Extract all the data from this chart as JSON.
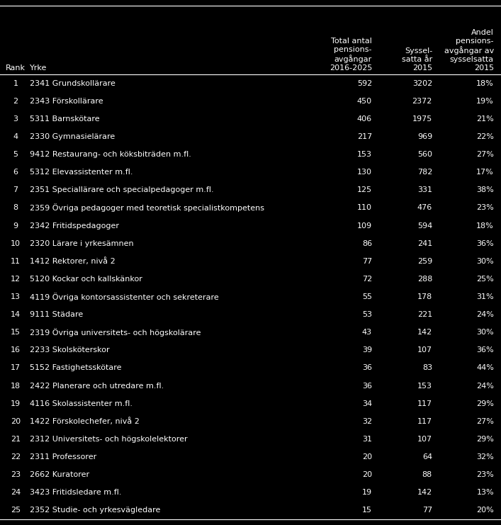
{
  "background_color": "#000000",
  "text_color": "#ffffff",
  "col_headers": [
    "Total antal\npensions-\navgångar\n2016-2025",
    "Syssel-\nsatta år\n2015",
    "Andel\npensions-\navgångar av\nsysselsatta\n2015"
  ],
  "rows": [
    [
      1,
      "2341 Grundskollärare",
      592,
      3202,
      "18%"
    ],
    [
      2,
      "2343 Förskollärare",
      450,
      2372,
      "19%"
    ],
    [
      3,
      "5311 Barnskötare",
      406,
      1975,
      "21%"
    ],
    [
      4,
      "2330 Gymnasielärare",
      217,
      969,
      "22%"
    ],
    [
      5,
      "9412 Restaurang- och köksbiträden m.fl.",
      153,
      560,
      "27%"
    ],
    [
      6,
      "5312 Elevassistenter m.fl.",
      130,
      782,
      "17%"
    ],
    [
      7,
      "2351 Speciallärare och specialpedagoger m.fl.",
      125,
      331,
      "38%"
    ],
    [
      8,
      "2359 Övriga pedagoger med teoretisk specialistkompetens",
      110,
      476,
      "23%"
    ],
    [
      9,
      "2342 Fritidspedagoger",
      109,
      594,
      "18%"
    ],
    [
      10,
      "2320 Lärare i yrkesämnen",
      86,
      241,
      "36%"
    ],
    [
      11,
      "1412 Rektorer, nivå 2",
      77,
      259,
      "30%"
    ],
    [
      12,
      "5120 Kockar och kallskänkor",
      72,
      288,
      "25%"
    ],
    [
      13,
      "4119 Övriga kontorsassistenter och sekreterare",
      55,
      178,
      "31%"
    ],
    [
      14,
      "9111 Städare",
      53,
      221,
      "24%"
    ],
    [
      15,
      "2319 Övriga universitets- och högskolärare",
      43,
      142,
      "30%"
    ],
    [
      16,
      "2233 Skolsköterskor",
      39,
      107,
      "36%"
    ],
    [
      17,
      "5152 Fastighetsskötare",
      36,
      83,
      "44%"
    ],
    [
      18,
      "2422 Planerare och utredare m.fl.",
      36,
      153,
      "24%"
    ],
    [
      19,
      "4116 Skolassistenter m.fl.",
      34,
      117,
      "29%"
    ],
    [
      20,
      "1422 Förskolechefer, nivå 2",
      32,
      117,
      "27%"
    ],
    [
      21,
      "2312 Universitets- och högskolelektorer",
      31,
      107,
      "29%"
    ],
    [
      22,
      "2311 Professorer",
      20,
      64,
      "32%"
    ],
    [
      23,
      "2662 Kuratorer",
      20,
      88,
      "23%"
    ],
    [
      24,
      "3423 Fritidsledare m.fl.",
      19,
      142,
      "13%"
    ],
    [
      25,
      "2352 Studie- och yrkesvägledare",
      15,
      77,
      "20%"
    ]
  ],
  "font_size": 8.0,
  "header_font_size": 8.0,
  "figwidth": 7.07,
  "figheight": 7.41,
  "dpi": 100
}
